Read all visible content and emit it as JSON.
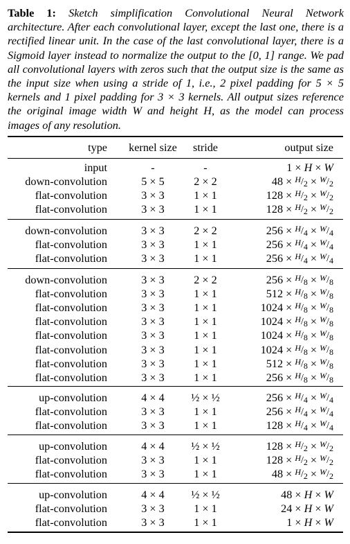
{
  "caption": {
    "label": "Table 1:",
    "text": "Sketch simplification Convolutional Neural Network architecture. After each convolutional layer, except the last one, there is a rectified linear unit. In the case of the last convolutional layer, there is a Sigmoid layer instead to normalize the output to the [0, 1] range. We pad all convolutional layers with zeros such that the output size is the same as the input size when using a stride of 1, i.e., 2 pixel padding for 5 × 5 kernels and 1 pixel padding for 3 × 3 kernels. All output sizes reference the original image width W and height H, as the model can process images of any resolution."
  },
  "header": {
    "type": "type",
    "kernel": "kernel size",
    "stride": "stride",
    "output": "output size"
  },
  "groups": [
    [
      {
        "type": "input",
        "kernel": "-",
        "stride": "-",
        "out_ch": "1",
        "out_div": ""
      },
      {
        "type": "down-convolution",
        "kernel": "5 × 5",
        "stride": "2 × 2",
        "out_ch": "48",
        "out_div": "2"
      },
      {
        "type": "flat-convolution",
        "kernel": "3 × 3",
        "stride": "1 × 1",
        "out_ch": "128",
        "out_div": "2"
      },
      {
        "type": "flat-convolution",
        "kernel": "3 × 3",
        "stride": "1 × 1",
        "out_ch": "128",
        "out_div": "2"
      }
    ],
    [
      {
        "type": "down-convolution",
        "kernel": "3 × 3",
        "stride": "2 × 2",
        "out_ch": "256",
        "out_div": "4"
      },
      {
        "type": "flat-convolution",
        "kernel": "3 × 3",
        "stride": "1 × 1",
        "out_ch": "256",
        "out_div": "4"
      },
      {
        "type": "flat-convolution",
        "kernel": "3 × 3",
        "stride": "1 × 1",
        "out_ch": "256",
        "out_div": "4"
      }
    ],
    [
      {
        "type": "down-convolution",
        "kernel": "3 × 3",
        "stride": "2 × 2",
        "out_ch": "256",
        "out_div": "8"
      },
      {
        "type": "flat-convolution",
        "kernel": "3 × 3",
        "stride": "1 × 1",
        "out_ch": "512",
        "out_div": "8"
      },
      {
        "type": "flat-convolution",
        "kernel": "3 × 3",
        "stride": "1 × 1",
        "out_ch": "1024",
        "out_div": "8"
      },
      {
        "type": "flat-convolution",
        "kernel": "3 × 3",
        "stride": "1 × 1",
        "out_ch": "1024",
        "out_div": "8"
      },
      {
        "type": "flat-convolution",
        "kernel": "3 × 3",
        "stride": "1 × 1",
        "out_ch": "1024",
        "out_div": "8"
      },
      {
        "type": "flat-convolution",
        "kernel": "3 × 3",
        "stride": "1 × 1",
        "out_ch": "1024",
        "out_div": "8"
      },
      {
        "type": "flat-convolution",
        "kernel": "3 × 3",
        "stride": "1 × 1",
        "out_ch": "512",
        "out_div": "8"
      },
      {
        "type": "flat-convolution",
        "kernel": "3 × 3",
        "stride": "1 × 1",
        "out_ch": "256",
        "out_div": "8"
      }
    ],
    [
      {
        "type": "up-convolution",
        "kernel": "4 × 4",
        "stride": "½ × ½",
        "out_ch": "256",
        "out_div": "4"
      },
      {
        "type": "flat-convolution",
        "kernel": "3 × 3",
        "stride": "1 × 1",
        "out_ch": "256",
        "out_div": "4"
      },
      {
        "type": "flat-convolution",
        "kernel": "3 × 3",
        "stride": "1 × 1",
        "out_ch": "128",
        "out_div": "4"
      }
    ],
    [
      {
        "type": "up-convolution",
        "kernel": "4 × 4",
        "stride": "½ × ½",
        "out_ch": "128",
        "out_div": "2"
      },
      {
        "type": "flat-convolution",
        "kernel": "3 × 3",
        "stride": "1 × 1",
        "out_ch": "128",
        "out_div": "2"
      },
      {
        "type": "flat-convolution",
        "kernel": "3 × 3",
        "stride": "1 × 1",
        "out_ch": "48",
        "out_div": "2"
      }
    ],
    [
      {
        "type": "up-convolution",
        "kernel": "4 × 4",
        "stride": "½ × ½",
        "out_ch": "48",
        "out_div": ""
      },
      {
        "type": "flat-convolution",
        "kernel": "3 × 3",
        "stride": "1 × 1",
        "out_ch": "24",
        "out_div": ""
      },
      {
        "type": "flat-convolution",
        "kernel": "3 × 3",
        "stride": "1 × 1",
        "out_ch": "1",
        "out_div": ""
      }
    ]
  ]
}
